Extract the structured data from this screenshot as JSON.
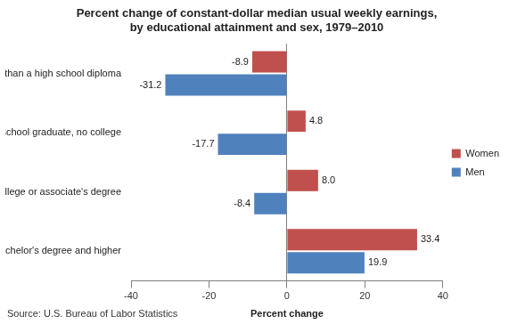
{
  "chart_data": {
    "type": "bar",
    "orientation": "horizontal",
    "title": [
      "Percent change of constant-dollar median usual weekly earnings,",
      "by educational attainment and sex, 1979–2010"
    ],
    "categories": [
      "Less than a high school diploma",
      "High school graduate, no college",
      "Some college or associate's degree",
      "Bachelor's degree and higher"
    ],
    "series": [
      {
        "name": "Women",
        "color": "#c0504d",
        "values": [
          -8.9,
          4.8,
          8.0,
          33.4
        ],
        "value_labels": [
          "-8.9",
          "4.8",
          "8.0",
          "33.4"
        ]
      },
      {
        "name": "Men",
        "color": "#4f81bd",
        "values": [
          -31.2,
          -17.7,
          -8.4,
          19.9
        ],
        "value_labels": [
          "-31.2",
          "-17.7",
          "-8.4",
          "19.9"
        ]
      }
    ],
    "xlim": [
      -40,
      40
    ],
    "xticks": [
      -40,
      -20,
      0,
      20,
      40
    ],
    "x_label": "Percent change",
    "grid": false,
    "legend": "right",
    "data_labels": true,
    "source": "Source: U.S. Bureau of Labor Statistics"
  }
}
